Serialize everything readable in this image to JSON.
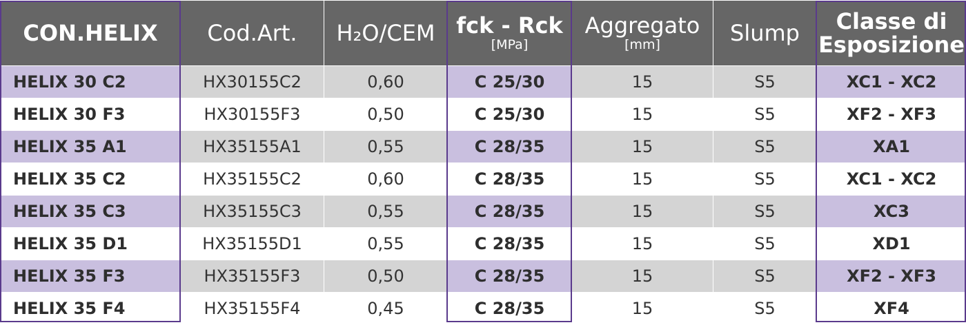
{
  "header": {
    "con_helix": "CON.HELIX",
    "cod_art": "Cod.Art.",
    "h2o_cem": "H₂O/CEM",
    "fck_rck": "fck - Rck",
    "fck_rck_unit": "[MPa]",
    "aggregato": "Aggregato",
    "aggregato_unit": "[mm]",
    "slump": "Slump",
    "classe_line1": "Classe di",
    "classe_line2": "Esposizione"
  },
  "rows": [
    {
      "name": "HELIX 30 C2",
      "code": "HX30155C2",
      "ratio": "0,60",
      "strength": "C 25/30",
      "aggregate": "15",
      "slump": "S5",
      "exposure": "XC1 - XC2"
    },
    {
      "name": "HELIX 30 F3",
      "code": "HX30155F3",
      "ratio": "0,50",
      "strength": "C 25/30",
      "aggregate": "15",
      "slump": "S5",
      "exposure": "XF2 - XF3"
    },
    {
      "name": "HELIX 35 A1",
      "code": "HX35155A1",
      "ratio": "0,55",
      "strength": "C 28/35",
      "aggregate": "15",
      "slump": "S5",
      "exposure": "XA1"
    },
    {
      "name": "HELIX 35 C2",
      "code": "HX35155C2",
      "ratio": "0,60",
      "strength": "C 28/35",
      "aggregate": "15",
      "slump": "S5",
      "exposure": "XC1 - XC2"
    },
    {
      "name": "HELIX 35 C3",
      "code": "HX35155C3",
      "ratio": "0,55",
      "strength": "C 28/35",
      "aggregate": "15",
      "slump": "S5",
      "exposure": "XC3"
    },
    {
      "name": "HELIX 35 D1",
      "code": "HX35155D1",
      "ratio": "0,55",
      "strength": "C 28/35",
      "aggregate": "15",
      "slump": "S5",
      "exposure": "XD1"
    },
    {
      "name": "HELIX 35 F3",
      "code": "HX35155F3",
      "ratio": "0,50",
      "strength": "C 28/35",
      "aggregate": "15",
      "slump": "S5",
      "exposure": "XF2 - XF3"
    },
    {
      "name": "HELIX 35 F4",
      "code": "HX35155F4",
      "ratio": "0,45",
      "strength": "C 28/35",
      "aggregate": "15",
      "slump": "S5",
      "exposure": "XF4"
    }
  ],
  "colors": {
    "header_bg": "#666666",
    "highlight_purple": "#c9bfdf",
    "row_gray": "#d4d4d4",
    "frame_purple": "#5a3a8c"
  }
}
